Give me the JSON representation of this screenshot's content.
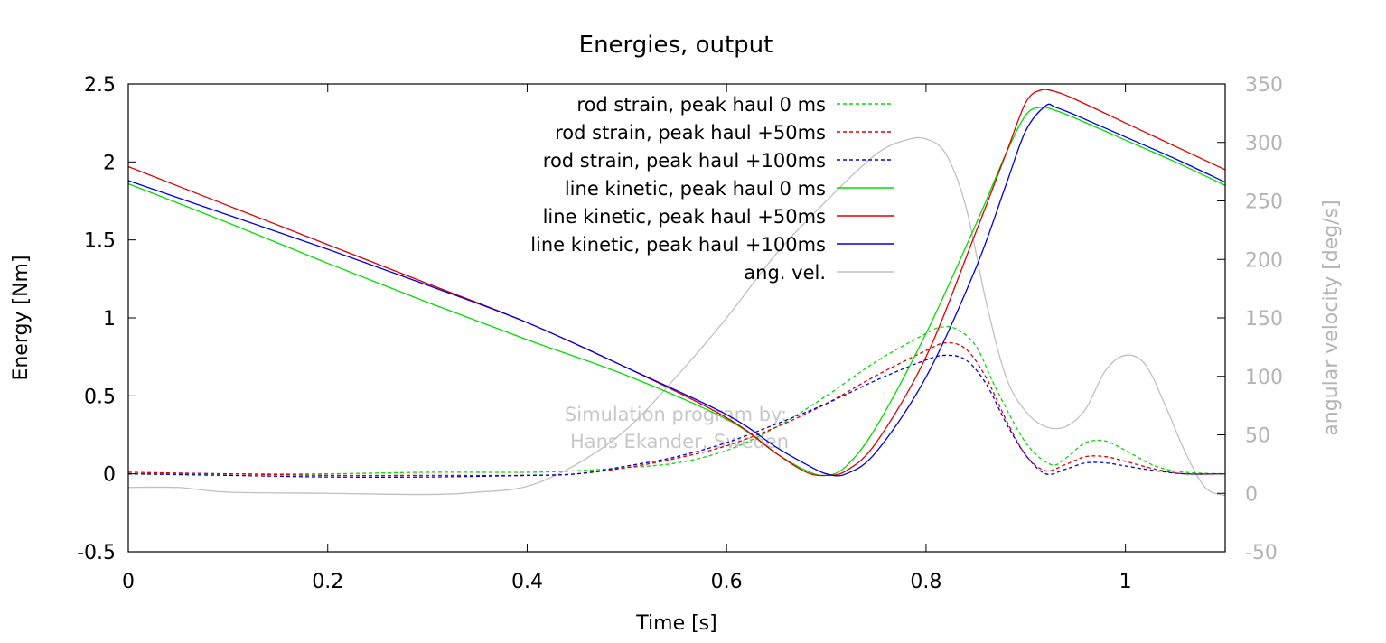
{
  "chart_data": {
    "type": "line",
    "title": "Energies, output",
    "xlabel": "Time [s]",
    "ylabel": "Energy [Nm]",
    "y2label": "angular velocity [deg/s]",
    "xlim": [
      0,
      1.1
    ],
    "ylim": [
      -0.5,
      2.5
    ],
    "y2lim": [
      -50,
      350
    ],
    "x_ticks": [
      "0",
      "0.2",
      "0.4",
      "0.6",
      "0.8",
      "1"
    ],
    "x_tick_values": [
      0,
      0.2,
      0.4,
      0.6,
      0.8,
      1.0
    ],
    "y_ticks": [
      "-0.5",
      "0",
      "0.5",
      "1",
      "1.5",
      "2",
      "2.5"
    ],
    "y_tick_values": [
      -0.5,
      0,
      0.5,
      1,
      1.5,
      2,
      2.5
    ],
    "y2_ticks": [
      "-50",
      "0",
      "50",
      "100",
      "150",
      "200",
      "250",
      "300",
      "350"
    ],
    "y2_tick_values": [
      -50,
      0,
      50,
      100,
      150,
      200,
      250,
      300,
      350
    ],
    "grid": false,
    "legend_position": "top-center",
    "watermark": [
      "Simulation program by:",
      "Hans Ekander, Sweden"
    ],
    "series": [
      {
        "name": "rod strain, peak haul 0 ms",
        "color": "#00dd00",
        "dash": true,
        "axis": "y",
        "x": [
          0,
          0.1,
          0.2,
          0.3,
          0.4,
          0.45,
          0.5,
          0.55,
          0.6,
          0.65,
          0.7,
          0.75,
          0.8,
          0.815,
          0.83,
          0.85,
          0.87,
          0.9,
          0.925,
          0.94,
          0.96,
          0.98,
          1.0,
          1.03,
          1.06,
          1.1
        ],
        "y": [
          0.0,
          0.0,
          0.0,
          0.01,
          0.01,
          0.02,
          0.04,
          0.07,
          0.15,
          0.3,
          0.5,
          0.72,
          0.9,
          0.94,
          0.93,
          0.82,
          0.55,
          0.2,
          0.06,
          0.1,
          0.2,
          0.21,
          0.15,
          0.05,
          0.01,
          0.0
        ]
      },
      {
        "name": "rod strain, peak haul +50ms",
        "color": "#dd0000",
        "dash": true,
        "axis": "y",
        "x": [
          0,
          0.1,
          0.2,
          0.3,
          0.4,
          0.45,
          0.5,
          0.55,
          0.6,
          0.65,
          0.7,
          0.75,
          0.8,
          0.82,
          0.84,
          0.86,
          0.88,
          0.9,
          0.92,
          0.94,
          0.96,
          0.98,
          1.0,
          1.03,
          1.06,
          1.1
        ],
        "y": [
          0.01,
          0.0,
          -0.01,
          -0.01,
          -0.01,
          0.0,
          0.04,
          0.1,
          0.18,
          0.3,
          0.45,
          0.63,
          0.79,
          0.84,
          0.8,
          0.62,
          0.35,
          0.12,
          0.02,
          0.06,
          0.11,
          0.11,
          0.08,
          0.03,
          0.0,
          0.0
        ]
      },
      {
        "name": "rod strain, peak haul +100ms",
        "color": "#0000dd",
        "dash": true,
        "axis": "y",
        "x": [
          0,
          0.1,
          0.2,
          0.3,
          0.4,
          0.45,
          0.5,
          0.55,
          0.6,
          0.65,
          0.7,
          0.75,
          0.8,
          0.82,
          0.84,
          0.86,
          0.88,
          0.9,
          0.92,
          0.94,
          0.96,
          0.98,
          1.0,
          1.03,
          1.06,
          1.1
        ],
        "y": [
          0.0,
          -0.01,
          -0.02,
          -0.02,
          -0.01,
          0.0,
          0.05,
          0.11,
          0.2,
          0.32,
          0.45,
          0.6,
          0.73,
          0.76,
          0.73,
          0.58,
          0.33,
          0.12,
          0.0,
          0.03,
          0.07,
          0.07,
          0.05,
          0.02,
          0.0,
          0.0
        ]
      },
      {
        "name": "line kinetic, peak haul 0 ms",
        "color": "#00dd00",
        "dash": false,
        "axis": "y",
        "x": [
          0,
          0.1,
          0.2,
          0.3,
          0.4,
          0.5,
          0.6,
          0.65,
          0.68,
          0.7,
          0.72,
          0.75,
          0.8,
          0.85,
          0.88,
          0.9,
          0.915,
          0.93,
          0.95,
          1.0,
          1.05,
          1.1
        ],
        "y": [
          1.86,
          1.61,
          1.35,
          1.1,
          0.86,
          0.63,
          0.35,
          0.13,
          0.02,
          -0.01,
          0.05,
          0.3,
          0.9,
          1.6,
          2.05,
          2.3,
          2.35,
          2.33,
          2.28,
          2.14,
          2.0,
          1.85
        ]
      },
      {
        "name": "line kinetic, peak haul +50ms",
        "color": "#dd0000",
        "dash": false,
        "axis": "y",
        "x": [
          0,
          0.1,
          0.2,
          0.3,
          0.4,
          0.5,
          0.6,
          0.65,
          0.68,
          0.7,
          0.72,
          0.75,
          0.8,
          0.85,
          0.88,
          0.9,
          0.915,
          0.93,
          0.95,
          1.0,
          1.05,
          1.1
        ],
        "y": [
          1.97,
          1.72,
          1.47,
          1.22,
          0.97,
          0.68,
          0.36,
          0.13,
          0.01,
          -0.01,
          0.02,
          0.2,
          0.75,
          1.55,
          2.05,
          2.38,
          2.46,
          2.45,
          2.4,
          2.25,
          2.1,
          1.95
        ]
      },
      {
        "name": "line kinetic, peak haul +100ms",
        "color": "#0000dd",
        "dash": false,
        "axis": "y",
        "x": [
          0,
          0.1,
          0.2,
          0.3,
          0.4,
          0.5,
          0.6,
          0.65,
          0.68,
          0.7,
          0.72,
          0.75,
          0.8,
          0.85,
          0.88,
          0.9,
          0.92,
          0.93,
          0.95,
          1.0,
          1.05,
          1.1
        ],
        "y": [
          1.88,
          1.66,
          1.44,
          1.21,
          0.97,
          0.68,
          0.38,
          0.17,
          0.06,
          0.0,
          0.0,
          0.14,
          0.62,
          1.32,
          1.85,
          2.2,
          2.36,
          2.35,
          2.3,
          2.16,
          2.02,
          1.87
        ]
      },
      {
        "name": "ang. vel.",
        "color": "#c0c0c0",
        "dash": false,
        "axis": "y2",
        "x": [
          0,
          0.05,
          0.1,
          0.2,
          0.3,
          0.35,
          0.4,
          0.45,
          0.5,
          0.55,
          0.6,
          0.65,
          0.7,
          0.75,
          0.78,
          0.8,
          0.82,
          0.84,
          0.86,
          0.88,
          0.9,
          0.92,
          0.94,
          0.96,
          0.98,
          1.0,
          1.02,
          1.04,
          1.06,
          1.08,
          1.1
        ],
        "y": [
          5,
          5,
          1,
          0,
          -1,
          1,
          6,
          25,
          55,
          100,
          150,
          205,
          250,
          290,
          302,
          303,
          290,
          245,
          165,
          100,
          70,
          57,
          57,
          72,
          105,
          118,
          110,
          75,
          35,
          5,
          -2
        ]
      }
    ]
  }
}
